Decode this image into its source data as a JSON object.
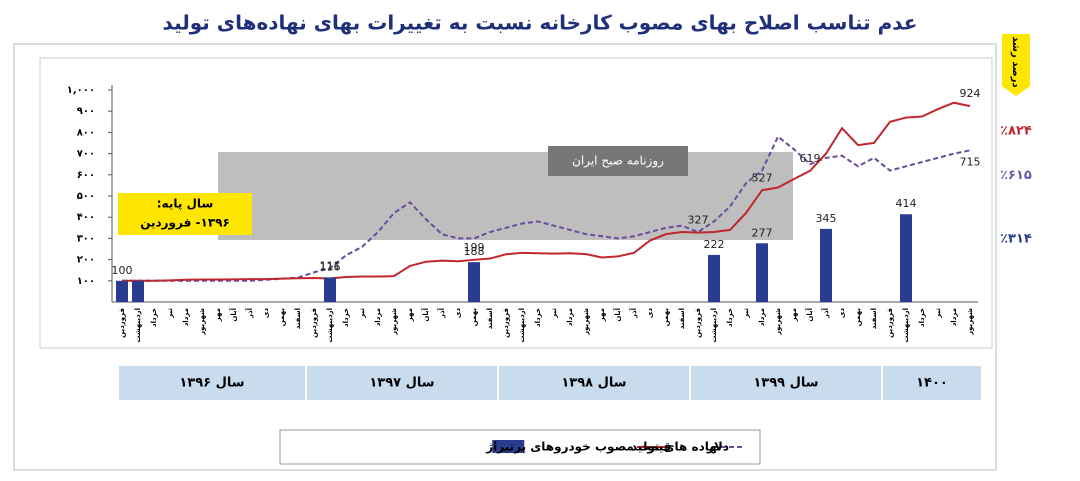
{
  "chart_data": {
    "type": "combo",
    "title": "عدم تناسب اصلاح بهای مصوب کارخانه نسبت به تغییرات بهای نهاده‌های تولید",
    "watermark": "روزنامه صبح ایران",
    "base_note": [
      "سال پایه:",
      "۱۳۹۶- فروردین"
    ],
    "growth_title": "درصد رشد",
    "annotations": [
      {
        "text": "٪۸۲۴",
        "color": "#c0272d",
        "y": 924
      },
      {
        "text": "٪۶۱۵",
        "color": "#6a5aa8",
        "y": 715
      },
      {
        "text": "٪۳۱۴",
        "color": "#2a3c8f",
        "y": 414
      }
    ],
    "categories": [
      "فروردین",
      "اردیبهشت",
      "خرداد",
      "تیر",
      "مرداد",
      "شهریور",
      "مهر",
      "آبان",
      "آذر",
      "دی",
      "بهمن",
      "اسفند",
      "فروردین",
      "اردیبهشت",
      "خرداد",
      "تیر",
      "مرداد",
      "شهریور",
      "مهر",
      "آبان",
      "آذر",
      "دی",
      "بهمن",
      "اسفند",
      "فروردین",
      "اردیبهشت",
      "خرداد",
      "تیر",
      "مرداد",
      "شهریور",
      "مهر",
      "آبان",
      "آذر",
      "دی",
      "بهمن",
      "اسفند",
      "فروردین",
      "اردیبهشت",
      "خرداد",
      "تیر",
      "مرداد",
      "شهریور",
      "مهر",
      "آبان",
      "آذر",
      "دی",
      "بهمن",
      "اسفند",
      "فروردین",
      "اردیبهشت",
      "خرداد",
      "تیر",
      "مرداد",
      "شهریور"
    ],
    "years": [
      "سال ۱۳۹۶",
      "سال ۱۳۹۷",
      "سال ۱۳۹۸",
      "سال ۱۳۹۹",
      "۱۴۰۰"
    ],
    "ylim": [
      0,
      1000
    ],
    "yticks": [
      {
        "value": 100,
        "label": "۱۰۰"
      },
      {
        "value": 200,
        "label": "۲۰۰"
      },
      {
        "value": 300,
        "label": "۳۰۰"
      },
      {
        "value": 400,
        "label": "۴۰۰"
      },
      {
        "value": 500,
        "label": "۵۰۰"
      },
      {
        "value": 600,
        "label": "۶۰۰"
      },
      {
        "value": 700,
        "label": "۷۰۰"
      },
      {
        "value": 800,
        "label": "۸۰۰"
      },
      {
        "value": 900,
        "label": "۹۰۰"
      },
      {
        "value": 1000,
        "label": "۱,۰۰۰"
      }
    ],
    "series": [
      {
        "name": "دلار",
        "kind": "dashed-line",
        "color": "#6a4c9c",
        "values": [
          100,
          100,
          100,
          100,
          100,
          100,
          100,
          100,
          100,
          105,
          110,
          115,
          140,
          160,
          220,
          260,
          330,
          420,
          470,
          390,
          320,
          300,
          300,
          330,
          350,
          370,
          380,
          360,
          340,
          320,
          310,
          300,
          310,
          330,
          350,
          360,
          330,
          380,
          450,
          560,
          620,
          780,
          720,
          650,
          680,
          690,
          640,
          680,
          620,
          640,
          660,
          680,
          700,
          715
        ],
        "value_labels": [
          null,
          null,
          null,
          null,
          null,
          null,
          null,
          null,
          null,
          null,
          null,
          null,
          null,
          null,
          null,
          null,
          null,
          null,
          null,
          null,
          null,
          null,
          null,
          null,
          null,
          null,
          null,
          null,
          null,
          null,
          null,
          null,
          null,
          null,
          null,
          null,
          null,
          null,
          null,
          null,
          null,
          null,
          null,
          null,
          null,
          null,
          null,
          null,
          null,
          null,
          null,
          null,
          null,
          "715"
        ]
      },
      {
        "name": "نهاده های تولید",
        "kind": "line",
        "color": "#c0272d",
        "values": [
          100,
          100,
          100,
          102,
          105,
          106,
          106,
          107,
          108,
          108,
          110,
          112,
          113,
          111,
          118,
          120,
          120,
          122,
          170,
          190,
          195,
          192,
          199,
          205,
          225,
          232,
          230,
          228,
          230,
          226,
          210,
          215,
          232,
          290,
          320,
          330,
          327,
          330,
          340,
          420,
          527,
          540,
          580,
          619,
          700,
          820,
          740,
          750,
          850,
          870,
          875,
          910,
          940,
          924
        ],
        "value_labels": [
          null,
          null,
          null,
          null,
          null,
          null,
          null,
          null,
          null,
          null,
          null,
          null,
          null,
          "111",
          null,
          null,
          null,
          null,
          null,
          null,
          null,
          null,
          "199",
          null,
          null,
          null,
          null,
          null,
          null,
          null,
          null,
          null,
          null,
          null,
          null,
          null,
          "327",
          null,
          null,
          null,
          "527",
          null,
          null,
          "619",
          null,
          null,
          null,
          null,
          null,
          null,
          null,
          null,
          null,
          "924"
        ]
      },
      {
        "name": "قیمت مصوب خودروهای پرتیراژ",
        "kind": "bar",
        "color": "#2a3c8f",
        "values": [
          100,
          100,
          null,
          null,
          null,
          null,
          null,
          null,
          null,
          null,
          null,
          null,
          null,
          116,
          null,
          null,
          null,
          null,
          null,
          null,
          null,
          null,
          188,
          null,
          null,
          null,
          null,
          null,
          null,
          null,
          null,
          null,
          null,
          null,
          null,
          null,
          null,
          222,
          null,
          null,
          277,
          null,
          null,
          null,
          345,
          null,
          null,
          null,
          null,
          414,
          null,
          null,
          null,
          null
        ],
        "value_labels": [
          "100",
          null,
          null,
          null,
          null,
          null,
          null,
          null,
          null,
          null,
          null,
          null,
          null,
          "116",
          null,
          null,
          null,
          null,
          null,
          null,
          null,
          null,
          "188",
          null,
          null,
          null,
          null,
          null,
          null,
          null,
          null,
          null,
          null,
          null,
          null,
          null,
          null,
          "222",
          null,
          null,
          "277",
          null,
          null,
          null,
          "345",
          null,
          null,
          null,
          null,
          "414",
          null,
          null,
          null,
          null
        ]
      }
    ]
  }
}
